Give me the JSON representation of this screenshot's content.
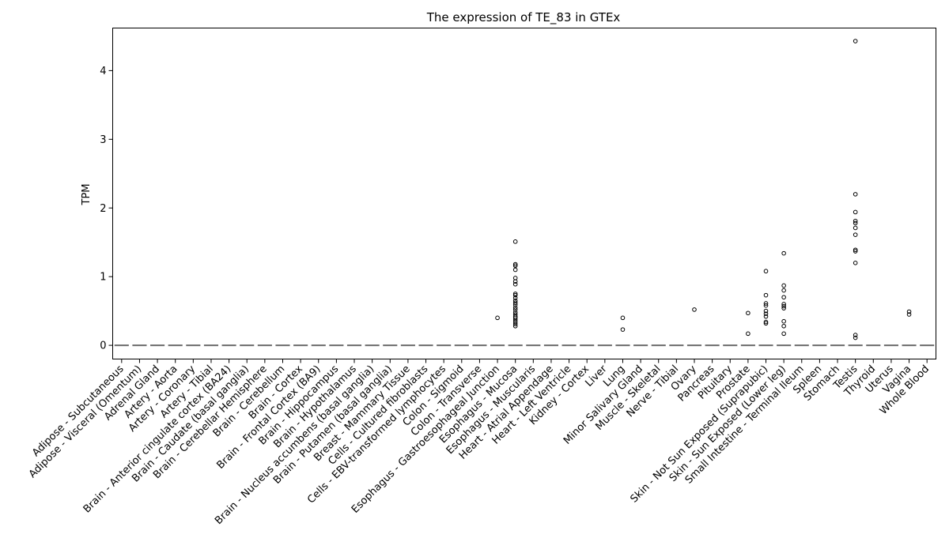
{
  "chart_data": {
    "type": "box",
    "title": "The expression of TE_83 in GTEx",
    "xlabel": "",
    "ylabel": "TPM",
    "ylim": [
      -0.2,
      4.62
    ],
    "yticks": [
      0,
      1,
      2,
      3,
      4
    ],
    "ytick_labels": [
      "0",
      "1",
      "2",
      "3",
      "4"
    ],
    "grid": false,
    "legend": "none",
    "median_color": "#6b6b6b",
    "outlier_color": "#000000",
    "categories": [
      "Adipose - Subcutaneous",
      "Adipose - Visceral (Omentum)",
      "Adrenal Gland",
      "Artery - Aorta",
      "Artery - Coronary",
      "Artery - Tibial",
      "Brain - Anterior cingulate cortex (BA24)",
      "Brain - Caudate (basal ganglia)",
      "Brain - Cerebellar Hemisphere",
      "Brain - Cerebellum",
      "Brain - Cortex",
      "Brain - Frontal Cortex (BA9)",
      "Brain - Hippocampus",
      "Brain - Hypothalamus",
      "Brain - Nucleus accumbens (basal ganglia)",
      "Brain - Putamen (basal ganglia)",
      "Breast - Mammary Tissue",
      "Cells - Cultured fibroblasts",
      "Cells - EBV-transformed lymphocytes",
      "Colon - Sigmoid",
      "Colon - Transverse",
      "Esophagus - Gastroesophageal Junction",
      "Esophagus - Mucosa",
      "Esophagus - Muscularis",
      "Heart - Atrial Appendage",
      "Heart - Left Ventricle",
      "Kidney - Cortex",
      "Liver",
      "Lung",
      "Minor Salivary Gland",
      "Muscle - Skeletal",
      "Nerve - Tibial",
      "Ovary",
      "Pancreas",
      "Pituitary",
      "Prostate",
      "Skin - Not Sun Exposed (Suprapubic)",
      "Skin - Sun Exposed (Lower leg)",
      "Small Intestine - Terminal Ileum",
      "Spleen",
      "Stomach",
      "Testis",
      "Thyroid",
      "Uterus",
      "Vagina",
      "Whole Blood"
    ],
    "medians": [
      0,
      0,
      0,
      0,
      0,
      0,
      0,
      0,
      0,
      0,
      0,
      0,
      0,
      0,
      0,
      0,
      0,
      0,
      0,
      0,
      0,
      0,
      0,
      0,
      0,
      0,
      0,
      0,
      0,
      0,
      0,
      0,
      0,
      0,
      0,
      0,
      0,
      0,
      0,
      0,
      0,
      0,
      0,
      0,
      0,
      0
    ],
    "outliers": {
      "Esophagus - Gastroesophageal Junction": [
        0.4
      ],
      "Esophagus - Mucosa": [
        1.51,
        1.18,
        1.16,
        1.1,
        0.98,
        0.93,
        0.89,
        0.75,
        0.73,
        0.69,
        0.65,
        0.62,
        0.59,
        0.55,
        0.52,
        0.48,
        0.45,
        0.42,
        0.4,
        0.37,
        0.34,
        0.31,
        0.28
      ],
      "Lung": [
        0.4,
        0.23
      ],
      "Ovary": [
        0.52
      ],
      "Prostate": [
        0.47,
        0.17
      ],
      "Skin - Not Sun Exposed (Suprapubic)": [
        1.08,
        0.73,
        0.61,
        0.58,
        0.5,
        0.46,
        0.42,
        0.34,
        0.32
      ],
      "Skin - Sun Exposed (Lower leg)": [
        1.34,
        0.87,
        0.8,
        0.7,
        0.6,
        0.57,
        0.54,
        0.35,
        0.28,
        0.17
      ],
      "Testis": [
        4.43,
        2.2,
        1.94,
        1.81,
        1.78,
        1.71,
        1.61,
        1.39,
        1.37,
        1.2,
        0.15,
        0.11
      ],
      "Vagina": [
        0.49,
        0.45
      ]
    }
  }
}
